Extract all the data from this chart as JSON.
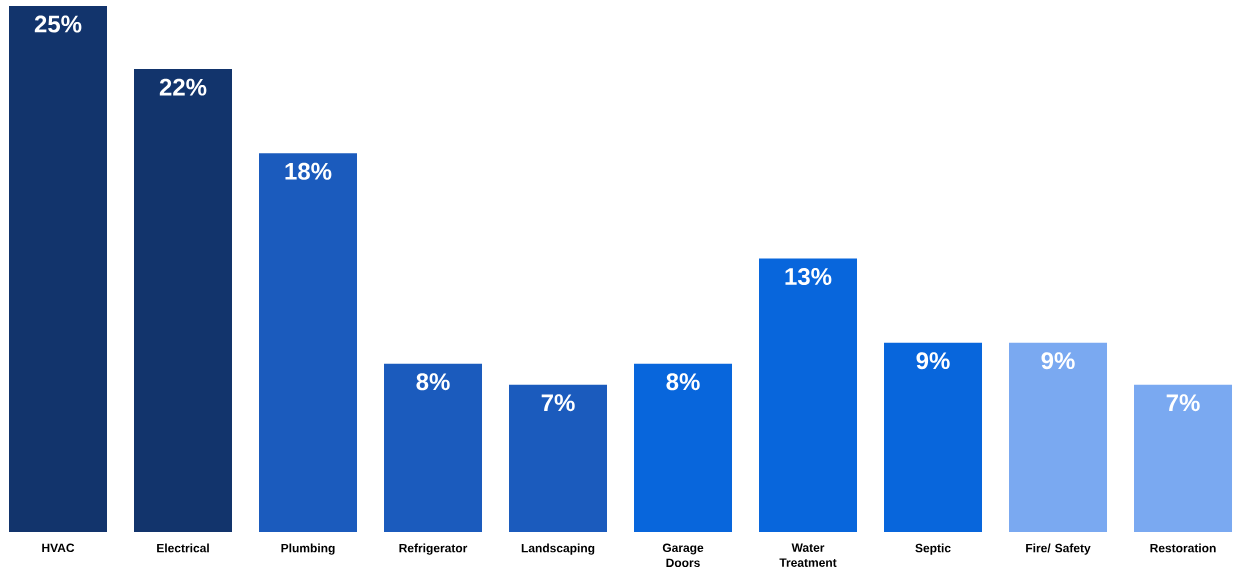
{
  "chart_data": {
    "type": "bar",
    "categories": [
      "HVAC",
      "Electrical",
      "Plumbing",
      "Refrigerator",
      "Landscaping",
      "Garage Doors",
      "Water Treatment",
      "Septic",
      "Fire/ Safety",
      "Restoration"
    ],
    "values": [
      25,
      22,
      18,
      8,
      7,
      8,
      13,
      9,
      9,
      7
    ],
    "value_labels": [
      "25%",
      "22%",
      "18%",
      "8%",
      "7%",
      "8%",
      "13%",
      "9%",
      "9%",
      "7%"
    ],
    "colors": [
      "#12346c",
      "#12346c",
      "#1b5bbd",
      "#1b5bbd",
      "#1b5bbd",
      "#0866dc",
      "#0866dc",
      "#0866dc",
      "#7aa9f1",
      "#7aa9f1"
    ]
  }
}
